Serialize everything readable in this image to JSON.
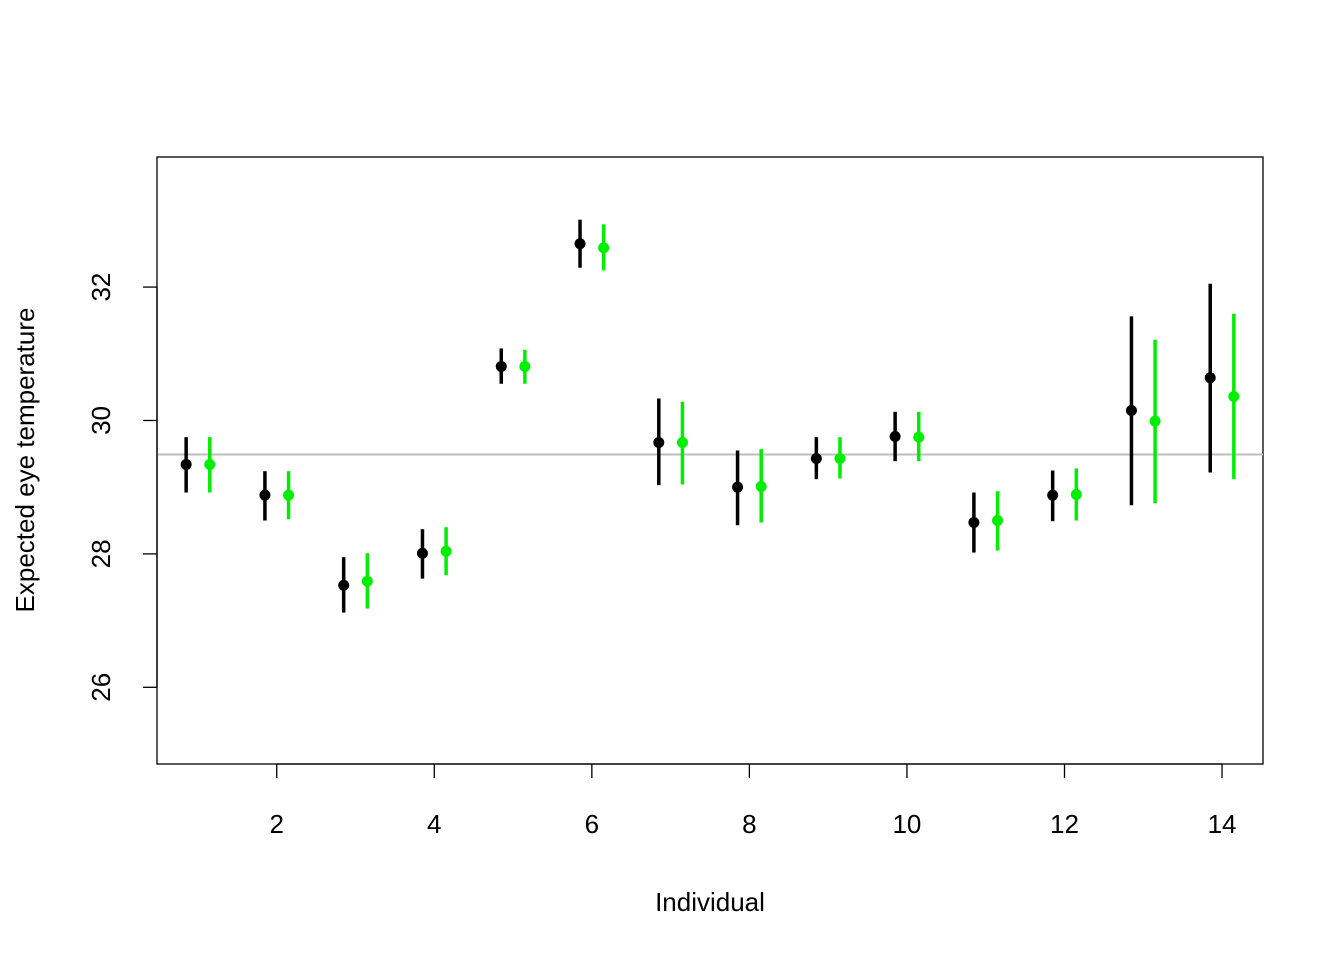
{
  "chart_data": {
    "type": "scatter",
    "title": "",
    "xlabel": "Individual",
    "ylabel": "Expected eye temperature",
    "xlim": [
      0.48,
      14.52
    ],
    "ylim": [
      24.85,
      33.95
    ],
    "xticks": [
      2,
      4,
      6,
      8,
      10,
      12,
      14
    ],
    "yticks": [
      26,
      28,
      30,
      32
    ],
    "grid": false,
    "reference_line": {
      "y": 29.49,
      "color": "#bebebe"
    },
    "series": [
      {
        "color": "#000000",
        "offset": -0.15,
        "x": [
          1,
          2,
          3,
          4,
          5,
          6,
          7,
          8,
          9,
          10,
          11,
          12,
          13,
          14
        ],
        "y": [
          29.34,
          28.88,
          27.53,
          28.01,
          30.81,
          32.65,
          29.67,
          29.0,
          29.43,
          29.76,
          28.47,
          28.88,
          30.15,
          30.64
        ],
        "low": [
          28.92,
          28.5,
          27.12,
          27.63,
          30.55,
          32.29,
          29.03,
          28.43,
          29.12,
          29.39,
          28.02,
          28.49,
          28.73,
          29.22
        ],
        "high": [
          29.75,
          29.24,
          27.95,
          28.37,
          31.08,
          33.01,
          30.33,
          29.55,
          29.75,
          30.13,
          28.92,
          29.25,
          31.56,
          32.05
        ]
      },
      {
        "color": "#00ee00",
        "offset": 0.15,
        "x": [
          1,
          2,
          3,
          4,
          5,
          6,
          7,
          8,
          9,
          10,
          11,
          12,
          13,
          14
        ],
        "y": [
          29.34,
          28.88,
          27.59,
          28.04,
          30.81,
          32.59,
          29.67,
          29.01,
          29.43,
          29.75,
          28.5,
          28.89,
          29.99,
          30.36
        ],
        "low": [
          28.92,
          28.52,
          27.18,
          27.68,
          30.55,
          32.25,
          29.04,
          28.47,
          29.13,
          29.39,
          28.05,
          28.5,
          28.76,
          29.12
        ],
        "high": [
          29.75,
          29.24,
          28.01,
          28.4,
          31.06,
          32.94,
          30.28,
          29.57,
          29.75,
          30.13,
          28.94,
          29.28,
          31.21,
          31.6
        ]
      }
    ]
  }
}
